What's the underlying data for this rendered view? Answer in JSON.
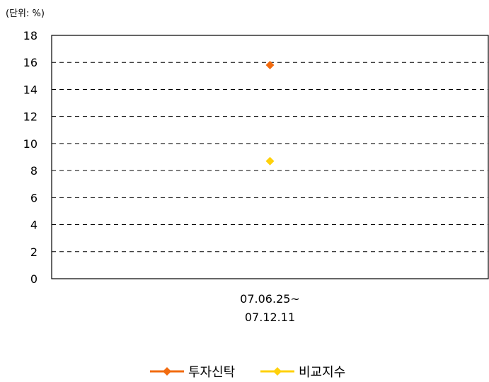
{
  "unit_label": "(단위: %)",
  "chart_data": {
    "type": "scatter",
    "categories": [
      "07.06.25~\n07.12.11"
    ],
    "series": [
      {
        "name": "투자신탁",
        "values": [
          15.8
        ],
        "color": "#F26B0F",
        "marker": "diamond"
      },
      {
        "name": "비교지수",
        "values": [
          8.7
        ],
        "color": "#FFD10A",
        "marker": "diamond"
      }
    ],
    "ylim": [
      0,
      18
    ],
    "yticks": [
      0,
      2,
      4,
      6,
      8,
      10,
      12,
      14,
      16,
      18
    ],
    "grid": true,
    "legend": "bottom"
  }
}
